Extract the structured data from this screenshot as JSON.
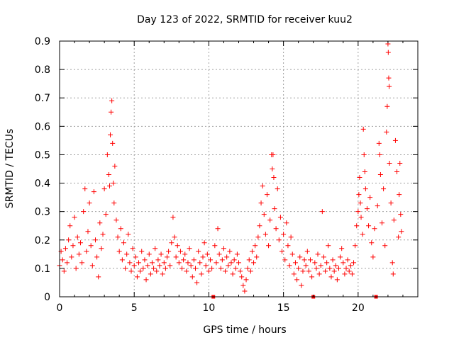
{
  "colors": {
    "series": "#ff0000",
    "grid": "#a0a0a0",
    "axis": "#000000"
  },
  "chart_data": {
    "type": "scatter",
    "title": "Day 123 of 2022, SRMTID for receiver kuu2",
    "xlabel": "GPS time / hours",
    "ylabel": "SRMTID / TECUs",
    "xlim": [
      0,
      24
    ],
    "ylim": [
      0,
      0.9
    ],
    "grid": true,
    "marker": "+",
    "x_ticks": [
      0,
      5,
      10,
      15,
      20
    ],
    "x_tick_labels": [
      "0",
      "5",
      "10",
      "15",
      "20"
    ],
    "y_ticks": [
      0,
      0.1,
      0.2,
      0.3,
      0.4,
      0.5,
      0.6,
      0.7,
      0.8,
      0.9
    ],
    "y_tick_labels": [
      "0",
      "0.1",
      "0.2",
      "0.3",
      "0.4",
      "0.5",
      "0.6",
      "0.7",
      "0.8",
      "0.9"
    ],
    "zero_markers_x": [
      10.3,
      17.0,
      21.2
    ],
    "series": [
      {
        "name": "SRMTID",
        "points": [
          [
            0.0,
            0.11
          ],
          [
            0.1,
            0.16
          ],
          [
            0.2,
            0.13
          ],
          [
            0.3,
            0.09
          ],
          [
            0.4,
            0.17
          ],
          [
            0.5,
            0.12
          ],
          [
            0.6,
            0.2
          ],
          [
            0.7,
            0.25
          ],
          [
            0.8,
            0.14
          ],
          [
            0.9,
            0.18
          ],
          [
            1.0,
            0.28
          ],
          [
            1.1,
            0.1
          ],
          [
            1.2,
            0.21
          ],
          [
            1.3,
            0.15
          ],
          [
            1.4,
            0.19
          ],
          [
            1.5,
            0.12
          ],
          [
            1.6,
            0.3
          ],
          [
            1.7,
            0.38
          ],
          [
            1.8,
            0.16
          ],
          [
            1.9,
            0.23
          ],
          [
            2.0,
            0.33
          ],
          [
            2.1,
            0.18
          ],
          [
            2.2,
            0.11
          ],
          [
            2.3,
            0.37
          ],
          [
            2.4,
            0.2
          ],
          [
            2.5,
            0.14
          ],
          [
            2.6,
            0.07
          ],
          [
            2.7,
            0.26
          ],
          [
            2.8,
            0.17
          ],
          [
            2.9,
            0.22
          ],
          [
            3.0,
            0.38
          ],
          [
            3.1,
            0.29
          ],
          [
            3.2,
            0.5
          ],
          [
            3.3,
            0.43
          ],
          [
            3.35,
            0.39
          ],
          [
            3.4,
            0.57
          ],
          [
            3.45,
            0.65
          ],
          [
            3.5,
            0.69
          ],
          [
            3.55,
            0.54
          ],
          [
            3.6,
            0.4
          ],
          [
            3.65,
            0.33
          ],
          [
            3.7,
            0.46
          ],
          [
            3.8,
            0.27
          ],
          [
            3.9,
            0.21
          ],
          [
            4.0,
            0.16
          ],
          [
            4.1,
            0.24
          ],
          [
            4.2,
            0.13
          ],
          [
            4.3,
            0.19
          ],
          [
            4.4,
            0.1
          ],
          [
            4.5,
            0.15
          ],
          [
            4.6,
            0.22
          ],
          [
            4.7,
            0.12
          ],
          [
            4.8,
            0.09
          ],
          [
            4.9,
            0.17
          ],
          [
            5.0,
            0.11
          ],
          [
            5.1,
            0.14
          ],
          [
            5.2,
            0.07
          ],
          [
            5.3,
            0.12
          ],
          [
            5.4,
            0.09
          ],
          [
            5.5,
            0.16
          ],
          [
            5.6,
            0.1
          ],
          [
            5.7,
            0.13
          ],
          [
            5.8,
            0.06
          ],
          [
            5.9,
            0.11
          ],
          [
            6.0,
            0.15
          ],
          [
            6.1,
            0.08
          ],
          [
            6.2,
            0.12
          ],
          [
            6.3,
            0.1
          ],
          [
            6.4,
            0.17
          ],
          [
            6.5,
            0.09
          ],
          [
            6.6,
            0.13
          ],
          [
            6.7,
            0.11
          ],
          [
            6.8,
            0.15
          ],
          [
            6.9,
            0.08
          ],
          [
            7.0,
            0.12
          ],
          [
            7.1,
            0.1
          ],
          [
            7.2,
            0.14
          ],
          [
            7.3,
            0.16
          ],
          [
            7.4,
            0.11
          ],
          [
            7.5,
            0.19
          ],
          [
            7.6,
            0.28
          ],
          [
            7.7,
            0.21
          ],
          [
            7.8,
            0.14
          ],
          [
            7.9,
            0.18
          ],
          [
            8.0,
            0.12
          ],
          [
            8.1,
            0.16
          ],
          [
            8.2,
            0.1
          ],
          [
            8.3,
            0.13
          ],
          [
            8.4,
            0.15
          ],
          [
            8.5,
            0.09
          ],
          [
            8.6,
            0.12
          ],
          [
            8.7,
            0.17
          ],
          [
            8.8,
            0.11
          ],
          [
            8.9,
            0.07
          ],
          [
            9.0,
            0.13
          ],
          [
            9.1,
            0.1
          ],
          [
            9.2,
            0.05
          ],
          [
            9.3,
            0.16
          ],
          [
            9.4,
            0.12
          ],
          [
            9.5,
            0.08
          ],
          [
            9.6,
            0.14
          ],
          [
            9.7,
            0.19
          ],
          [
            9.8,
            0.11
          ],
          [
            9.9,
            0.15
          ],
          [
            10.0,
            0.09
          ],
          [
            10.1,
            0.13
          ],
          [
            10.2,
            0.1
          ],
          [
            10.4,
            0.18
          ],
          [
            10.5,
            0.12
          ],
          [
            10.6,
            0.24
          ],
          [
            10.7,
            0.15
          ],
          [
            10.8,
            0.1
          ],
          [
            10.9,
            0.13
          ],
          [
            11.0,
            0.17
          ],
          [
            11.1,
            0.09
          ],
          [
            11.2,
            0.14
          ],
          [
            11.3,
            0.11
          ],
          [
            11.4,
            0.16
          ],
          [
            11.5,
            0.12
          ],
          [
            11.6,
            0.08
          ],
          [
            11.7,
            0.13
          ],
          [
            11.8,
            0.1
          ],
          [
            11.9,
            0.15
          ],
          [
            12.0,
            0.12
          ],
          [
            12.1,
            0.09
          ],
          [
            12.2,
            0.07
          ],
          [
            12.3,
            0.04
          ],
          [
            12.4,
            0.02
          ],
          [
            12.5,
            0.06
          ],
          [
            12.6,
            0.1
          ],
          [
            12.7,
            0.13
          ],
          [
            12.8,
            0.09
          ],
          [
            12.9,
            0.16
          ],
          [
            13.0,
            0.12
          ],
          [
            13.1,
            0.18
          ],
          [
            13.2,
            0.14
          ],
          [
            13.3,
            0.21
          ],
          [
            13.4,
            0.25
          ],
          [
            13.5,
            0.33
          ],
          [
            13.6,
            0.39
          ],
          [
            13.7,
            0.29
          ],
          [
            13.8,
            0.22
          ],
          [
            13.9,
            0.36
          ],
          [
            14.0,
            0.18
          ],
          [
            14.1,
            0.27
          ],
          [
            14.2,
            0.5
          ],
          [
            14.25,
            0.45
          ],
          [
            14.3,
            0.5
          ],
          [
            14.35,
            0.42
          ],
          [
            14.4,
            0.31
          ],
          [
            14.5,
            0.24
          ],
          [
            14.6,
            0.38
          ],
          [
            14.7,
            0.2
          ],
          [
            14.8,
            0.28
          ],
          [
            14.9,
            0.16
          ],
          [
            15.0,
            0.22
          ],
          [
            15.1,
            0.13
          ],
          [
            15.2,
            0.26
          ],
          [
            15.3,
            0.18
          ],
          [
            15.4,
            0.11
          ],
          [
            15.5,
            0.21
          ],
          [
            15.6,
            0.15
          ],
          [
            15.7,
            0.08
          ],
          [
            15.8,
            0.12
          ],
          [
            15.9,
            0.06
          ],
          [
            16.0,
            0.1
          ],
          [
            16.1,
            0.14
          ],
          [
            16.2,
            0.04
          ],
          [
            16.3,
            0.09
          ],
          [
            16.4,
            0.13
          ],
          [
            16.5,
            0.11
          ],
          [
            16.6,
            0.16
          ],
          [
            16.7,
            0.09
          ],
          [
            16.8,
            0.13
          ],
          [
            16.9,
            0.07
          ],
          [
            17.1,
            0.12
          ],
          [
            17.2,
            0.1
          ],
          [
            17.3,
            0.15
          ],
          [
            17.4,
            0.08
          ],
          [
            17.5,
            0.11
          ],
          [
            17.6,
            0.3
          ],
          [
            17.7,
            0.14
          ],
          [
            17.8,
            0.09
          ],
          [
            17.9,
            0.12
          ],
          [
            18.0,
            0.18
          ],
          [
            18.1,
            0.1
          ],
          [
            18.2,
            0.07
          ],
          [
            18.3,
            0.13
          ],
          [
            18.4,
            0.09
          ],
          [
            18.5,
            0.11
          ],
          [
            18.6,
            0.06
          ],
          [
            18.7,
            0.1
          ],
          [
            18.8,
            0.14
          ],
          [
            18.9,
            0.17
          ],
          [
            19.0,
            0.12
          ],
          [
            19.1,
            0.08
          ],
          [
            19.2,
            0.1
          ],
          [
            19.3,
            0.13
          ],
          [
            19.4,
            0.09
          ],
          [
            19.5,
            0.11
          ],
          [
            19.6,
            0.08
          ],
          [
            19.7,
            0.12
          ],
          [
            19.8,
            0.18
          ],
          [
            19.9,
            0.25
          ],
          [
            20.0,
            0.3
          ],
          [
            20.05,
            0.36
          ],
          [
            20.1,
            0.42
          ],
          [
            20.15,
            0.33
          ],
          [
            20.2,
            0.28
          ],
          [
            20.3,
            0.22
          ],
          [
            20.35,
            0.59
          ],
          [
            20.4,
            0.5
          ],
          [
            20.45,
            0.44
          ],
          [
            20.5,
            0.38
          ],
          [
            20.6,
            0.31
          ],
          [
            20.7,
            0.25
          ],
          [
            20.8,
            0.35
          ],
          [
            20.9,
            0.19
          ],
          [
            21.0,
            0.14
          ],
          [
            21.1,
            0.24
          ],
          [
            21.3,
            0.32
          ],
          [
            21.4,
            0.54
          ],
          [
            21.45,
            0.5
          ],
          [
            21.5,
            0.43
          ],
          [
            21.6,
            0.26
          ],
          [
            21.7,
            0.38
          ],
          [
            21.8,
            0.18
          ],
          [
            21.9,
            0.58
          ],
          [
            21.95,
            0.67
          ],
          [
            22.0,
            0.89
          ],
          [
            22.02,
            0.86
          ],
          [
            22.05,
            0.77
          ],
          [
            22.08,
            0.74
          ],
          [
            22.1,
            0.47
          ],
          [
            22.2,
            0.33
          ],
          [
            22.3,
            0.12
          ],
          [
            22.35,
            0.08
          ],
          [
            22.4,
            0.27
          ],
          [
            22.5,
            0.55
          ],
          [
            22.6,
            0.44
          ],
          [
            22.7,
            0.21
          ],
          [
            22.75,
            0.36
          ],
          [
            22.8,
            0.47
          ],
          [
            22.85,
            0.29
          ],
          [
            22.9,
            0.23
          ]
        ]
      }
    ]
  }
}
